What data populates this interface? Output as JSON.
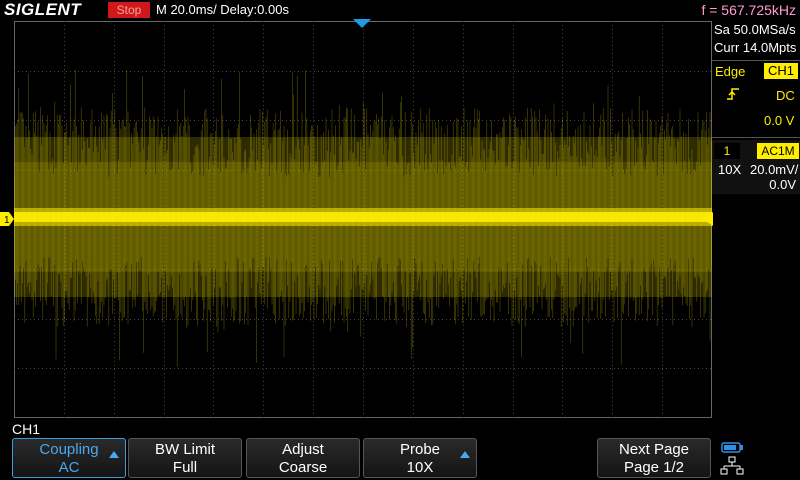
{
  "header": {
    "brand": "SIGLENT",
    "run_status": "Stop",
    "timebase": "M 20.0ms/ Delay:0.00s",
    "frequency": "f = 567.725kHz"
  },
  "acquisition": {
    "sample_rate": "Sa 50.0MSa/s",
    "memory_depth": "Curr 14.0Mpts"
  },
  "trigger": {
    "type": "Edge",
    "source": "CH1",
    "slope_icon": "rising-edge-icon",
    "coupling": "DC",
    "level": "0.0 V"
  },
  "channel": {
    "number": "1",
    "coupling": "AC1M",
    "probe": "10X",
    "scale": "20.0mV/",
    "offset": "0.0V",
    "marker": "1",
    "color": "#ffee00"
  },
  "menu": {
    "title": "CH1",
    "softkeys": [
      {
        "line1": "Coupling",
        "line2": "AC"
      },
      {
        "line1": "BW Limit",
        "line2": "Full"
      },
      {
        "line1": "Adjust",
        "line2": "Coarse"
      },
      {
        "line1": "Probe",
        "line2": "10X"
      },
      {
        "line1": "Next Page",
        "line2": "Page 1/2"
      }
    ]
  },
  "colors": {
    "trace": "#ffee00",
    "stop": "#d01818",
    "accent": "#3c9ce0",
    "frequency": "#ff9bd2"
  }
}
